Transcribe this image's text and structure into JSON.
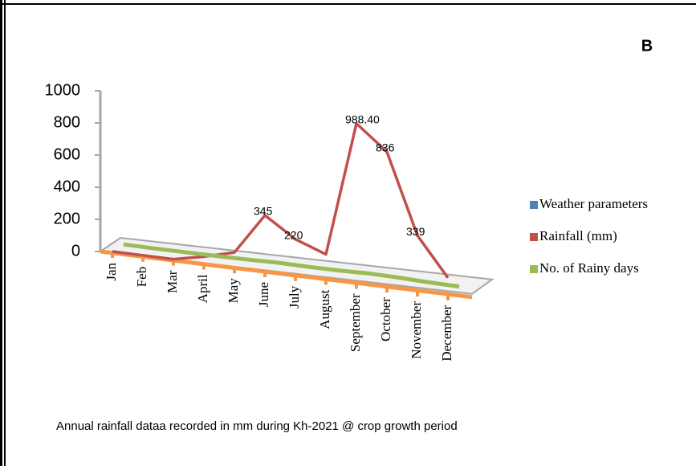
{
  "chart_data": {
    "type": "line3d",
    "panel_label": "B",
    "caption": "Annual rainfall dataa recorded in mm  during  Kh-2021 @ crop growth period",
    "categories": [
      "Jan",
      "Feb",
      "Mar",
      "April",
      "May",
      "June",
      "July",
      "August",
      "September",
      "October",
      "November",
      "December"
    ],
    "series": [
      {
        "name": "Weather parameters",
        "color": "#4f81bd",
        "values": [
          null,
          null,
          null,
          null,
          null,
          null,
          null,
          null,
          null,
          null,
          null,
          null
        ]
      },
      {
        "name": "Rainfall (mm)",
        "color": "#c0504d",
        "values": [
          0,
          0,
          0,
          40,
          90,
          345,
          220,
          150,
          988.4,
          836,
          339,
          100
        ],
        "value_labels": [
          null,
          null,
          null,
          null,
          null,
          "345",
          "220",
          null,
          "988.40",
          "836",
          "339",
          null
        ]
      },
      {
        "name": "No. of Rainy days",
        "color": "#9bbb59",
        "values": [
          2,
          1,
          2,
          3,
          5,
          10,
          8,
          9,
          14,
          12,
          6,
          4
        ]
      }
    ],
    "ylim": [
      0,
      1000
    ],
    "yticks": [
      0,
      200,
      400,
      600,
      800,
      1000
    ],
    "grid": false
  }
}
